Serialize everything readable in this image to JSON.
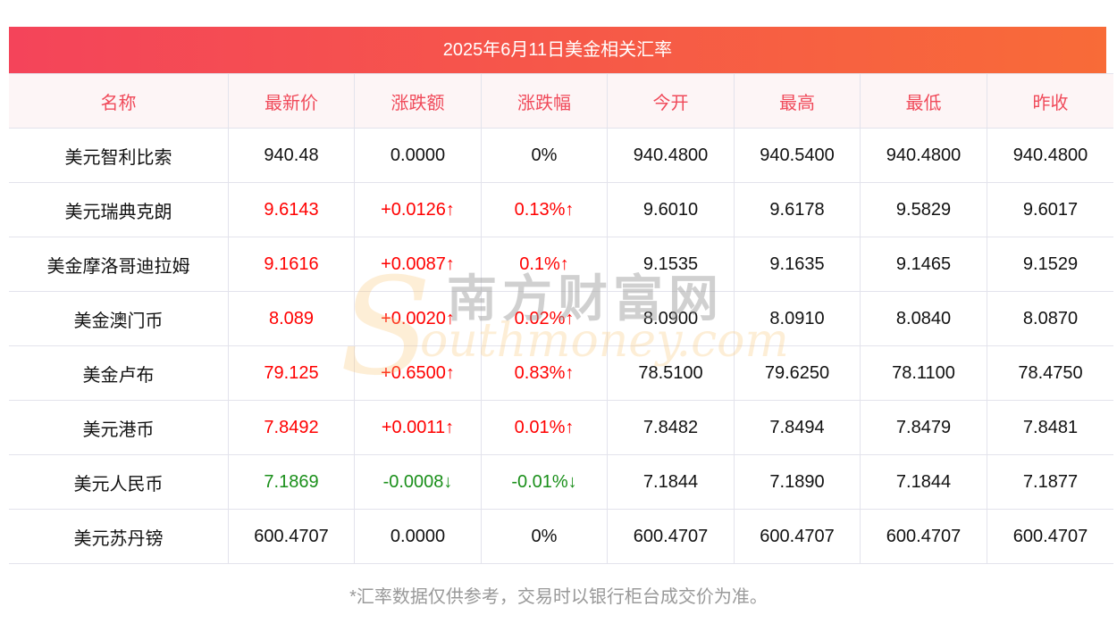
{
  "title": "2025年6月11日美金相关汇率",
  "columns": [
    "名称",
    "最新价",
    "涨跌额",
    "涨跌幅",
    "今开",
    "最高",
    "最低",
    "昨收"
  ],
  "rows": [
    {
      "name": "美元智利比索",
      "latest": "940.48",
      "change": "0.0000",
      "pct": "0%",
      "open": "940.4800",
      "high": "940.5400",
      "low": "940.4800",
      "prev": "940.4800",
      "trend": "flat"
    },
    {
      "name": "美元瑞典克朗",
      "latest": "9.6143",
      "change": "+0.0126↑",
      "pct": "0.13%↑",
      "open": "9.6010",
      "high": "9.6178",
      "low": "9.5829",
      "prev": "9.6017",
      "trend": "up"
    },
    {
      "name": "美金摩洛哥迪拉姆",
      "latest": "9.1616",
      "change": "+0.0087↑",
      "pct": "0.1%↑",
      "open": "9.1535",
      "high": "9.1635",
      "low": "9.1465",
      "prev": "9.1529",
      "trend": "up"
    },
    {
      "name": "美金澳门币",
      "latest": "8.089",
      "change": "+0.0020↑",
      "pct": "0.02%↑",
      "open": "8.0900",
      "high": "8.0910",
      "low": "8.0840",
      "prev": "8.0870",
      "trend": "up"
    },
    {
      "name": "美金卢布",
      "latest": "79.125",
      "change": "+0.6500↑",
      "pct": "0.83%↑",
      "open": "78.5100",
      "high": "79.6250",
      "low": "78.1100",
      "prev": "78.4750",
      "trend": "up"
    },
    {
      "name": "美元港币",
      "latest": "7.8492",
      "change": "+0.0011↑",
      "pct": "0.01%↑",
      "open": "7.8482",
      "high": "7.8494",
      "low": "7.8479",
      "prev": "7.8481",
      "trend": "up"
    },
    {
      "name": "美元人民币",
      "latest": "7.1869",
      "change": "-0.0008↓",
      "pct": "-0.01%↓",
      "open": "7.1844",
      "high": "7.1890",
      "low": "7.1844",
      "prev": "7.1877",
      "trend": "down"
    },
    {
      "name": "美元苏丹镑",
      "latest": "600.4707",
      "change": "0.0000",
      "pct": "0%",
      "open": "600.4707",
      "high": "600.4707",
      "low": "600.4707",
      "prev": "600.4707",
      "trend": "flat"
    }
  ],
  "watermark": {
    "cn": "南方财富网",
    "en": "outhmoney.com",
    "s": "S"
  },
  "note": "*汇率数据仅供参考，交易时以银行柜台成交价为准。",
  "colors": {
    "up": "#ff0000",
    "down": "#1a8f1a",
    "header_text": "#f04a5a"
  }
}
